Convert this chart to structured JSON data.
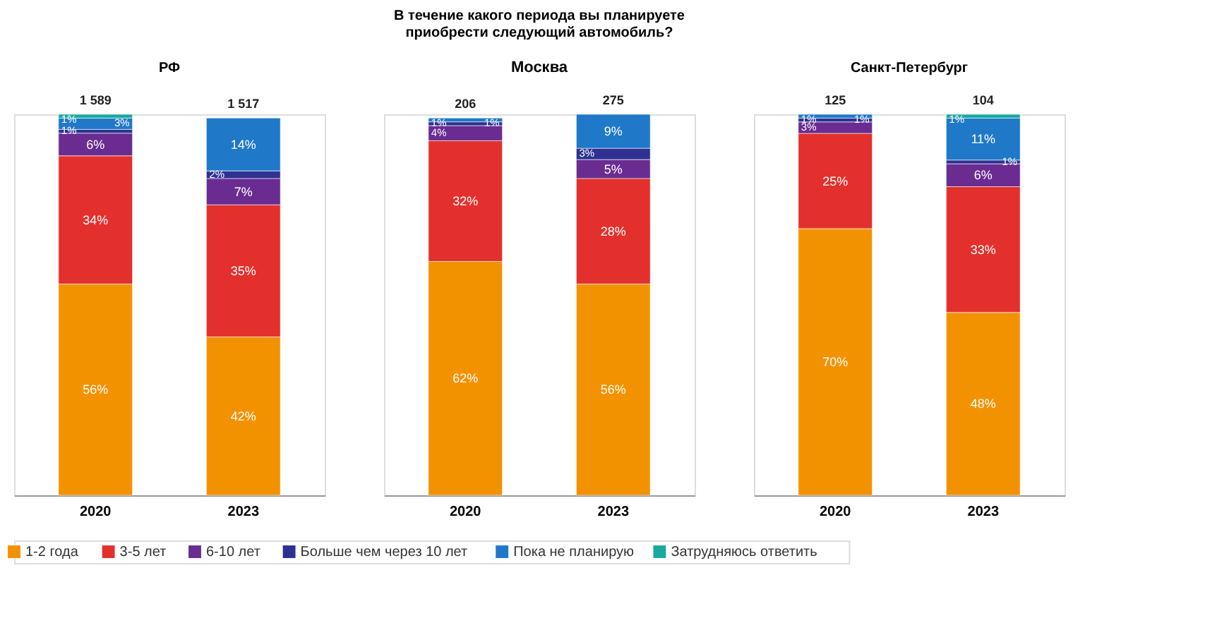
{
  "chart_data": [
    {
      "type": "bar",
      "stacked": true,
      "subtitle": "РФ",
      "categories": [
        "2020",
        "2023"
      ],
      "legend": "bottom",
      "annotations": [
        "1 589",
        "1 517"
      ],
      "series": [
        {
          "name": "1-2 года",
          "color": "#f39200",
          "values": [
            56,
            42
          ],
          "value_labels": [
            "56%",
            "42%"
          ]
        },
        {
          "name": "3-5 лет",
          "color": "#e3302c",
          "values": [
            34,
            35
          ],
          "value_labels": [
            "34%",
            "35%"
          ]
        },
        {
          "name": "6-10 лет",
          "color": "#6a2c91",
          "values": [
            6,
            7
          ],
          "value_labels": [
            "6%",
            "7%"
          ]
        },
        {
          "name": "Больше чем через 10 лет",
          "color": "#2e3192",
          "values": [
            1,
            2
          ],
          "value_labels": [
            "1%",
            "2%"
          ]
        },
        {
          "name": "Пока не планирую",
          "color": "#1f78c8",
          "values": [
            3,
            14
          ],
          "value_labels": [
            "3%",
            "14%"
          ]
        },
        {
          "name": "Затрудняюсь ответить",
          "color": "#19a89d",
          "values": [
            1,
            null
          ],
          "value_labels": [
            "1%",
            null
          ]
        }
      ]
    },
    {
      "type": "bar",
      "stacked": true,
      "title": "В течение какого периода вы планируете приобрести следующий автомобиль?",
      "subtitle": "Москва",
      "categories": [
        "2020",
        "2023"
      ],
      "annotations": [
        "206",
        "275"
      ],
      "series": [
        {
          "name": "1-2 года",
          "color": "#f39200",
          "values": [
            62,
            56
          ],
          "value_labels": [
            "62%",
            "56%"
          ]
        },
        {
          "name": "3-5 лет",
          "color": "#e3302c",
          "values": [
            32,
            28
          ],
          "value_labels": [
            "32%",
            "28%"
          ]
        },
        {
          "name": "6-10 лет",
          "color": "#6a2c91",
          "values": [
            4,
            5
          ],
          "value_labels": [
            "4%",
            "5%"
          ]
        },
        {
          "name": "Больше чем через 10 лет",
          "color": "#2e3192",
          "values": [
            1,
            3
          ],
          "value_labels": [
            "1%",
            "3%"
          ]
        },
        {
          "name": "Пока не планирую",
          "color": "#1f78c8",
          "values": [
            1,
            9
          ],
          "value_labels": [
            "1%",
            "9%"
          ]
        }
      ]
    },
    {
      "type": "bar",
      "stacked": true,
      "subtitle": "Санкт-Петербург",
      "categories": [
        "2020",
        "2023"
      ],
      "annotations": [
        "125",
        "104"
      ],
      "series": [
        {
          "name": "1-2 года",
          "color": "#f39200",
          "values": [
            70,
            48
          ],
          "value_labels": [
            "70%",
            "48%"
          ]
        },
        {
          "name": "3-5 лет",
          "color": "#e3302c",
          "values": [
            25,
            33
          ],
          "value_labels": [
            "25%",
            "33%"
          ]
        },
        {
          "name": "6-10 лет",
          "color": "#6a2c91",
          "values": [
            3,
            6
          ],
          "value_labels": [
            "3%",
            "6%"
          ]
        },
        {
          "name": "Больше чем через 10 лет",
          "color": "#2e3192",
          "values": [
            1,
            1
          ],
          "value_labels": [
            "1%",
            "1%"
          ]
        },
        {
          "name": "Пока не планирую",
          "color": "#1f78c8",
          "values": [
            1,
            11
          ],
          "value_labels": [
            "1%",
            "11%"
          ]
        },
        {
          "name": "Затрудняюсь ответить",
          "color": "#19a89d",
          "values": [
            null,
            1
          ],
          "value_labels": [
            null,
            "1%"
          ]
        }
      ]
    }
  ]
}
